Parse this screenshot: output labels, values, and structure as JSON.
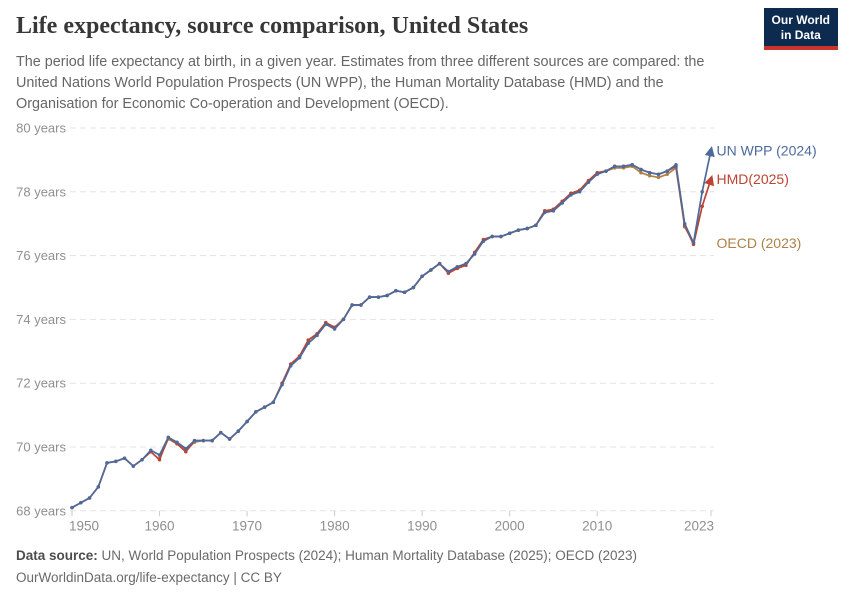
{
  "header": {
    "title": "Life expectancy, source comparison, United States",
    "subtitle_lines": [
      "The period life expectancy at birth, in a given year. Estimates from three different sources are compared: the",
      "United Nations World Population Prospects (UN WPP), the Human Mortality Database (HMD) and the",
      "Organisation for Economic Co-operation and Development (OECD)."
    ],
    "logo": {
      "line1": "Our World",
      "line2": "in Data",
      "bg_color": "#0C2B4E",
      "accent_color": "#CB342B"
    }
  },
  "footer": {
    "source_label": "Data source:",
    "source_text": " UN, World Population Prospects (2024); Human Mortality Database (2025); OECD (2023)",
    "license_text": "OurWorldinData.org/life-expectancy | CC BY"
  },
  "chart_data": {
    "type": "line",
    "title": "Life expectancy, source comparison, United States",
    "xlabel": "",
    "ylabel": "",
    "ytick_suffix": " years",
    "xlim": [
      1950,
      2023
    ],
    "ylim": [
      68,
      80
    ],
    "yticks": [
      80,
      78,
      76,
      74,
      72,
      70,
      68
    ],
    "xticks": [
      1950,
      1960,
      1970,
      1980,
      1990,
      2000,
      2010,
      2023
    ],
    "grid": "horizontal-dashed",
    "legend_position": "right-of-line-ends",
    "x": [
      1950,
      1951,
      1952,
      1953,
      1954,
      1955,
      1956,
      1957,
      1958,
      1959,
      1960,
      1961,
      1962,
      1963,
      1964,
      1965,
      1966,
      1967,
      1968,
      1969,
      1970,
      1971,
      1972,
      1973,
      1974,
      1975,
      1976,
      1977,
      1978,
      1979,
      1980,
      1981,
      1982,
      1983,
      1984,
      1985,
      1986,
      1987,
      1988,
      1989,
      1990,
      1991,
      1992,
      1993,
      1994,
      1995,
      1996,
      1997,
      1998,
      1999,
      2000,
      2001,
      2002,
      2003,
      2004,
      2005,
      2006,
      2007,
      2008,
      2009,
      2010,
      2011,
      2012,
      2013,
      2014,
      2015,
      2016,
      2017,
      2018,
      2019,
      2020,
      2021,
      2022,
      2023
    ],
    "series": [
      {
        "name": "UN WPP (2024)",
        "color": "#4C6A9C",
        "arrow_end": true,
        "values": [
          68.1,
          68.25,
          68.4,
          68.75,
          69.5,
          69.55,
          69.65,
          69.4,
          69.6,
          69.9,
          69.75,
          70.3,
          70.15,
          69.95,
          70.2,
          70.2,
          70.2,
          70.45,
          70.25,
          70.5,
          70.8,
          71.1,
          71.25,
          71.4,
          71.95,
          72.55,
          72.8,
          73.25,
          73.5,
          73.85,
          73.7,
          74.0,
          74.45,
          74.45,
          74.7,
          74.7,
          74.75,
          74.9,
          74.85,
          75.0,
          75.35,
          75.55,
          75.75,
          75.5,
          75.65,
          75.75,
          76.05,
          76.45,
          76.6,
          76.6,
          76.7,
          76.8,
          76.85,
          76.95,
          77.35,
          77.4,
          77.65,
          77.9,
          78.0,
          78.3,
          78.55,
          78.65,
          78.8,
          78.8,
          78.85,
          78.7,
          78.6,
          78.55,
          78.65,
          78.85,
          77.0,
          76.4,
          78.0,
          79.3
        ]
      },
      {
        "name": "HMD(2025)",
        "color": "#BE4333",
        "arrow_end": true,
        "values": [
          68.1,
          68.25,
          68.4,
          68.75,
          69.5,
          69.55,
          69.65,
          69.4,
          69.6,
          69.85,
          69.6,
          70.3,
          70.1,
          69.85,
          70.2,
          70.2,
          70.2,
          70.45,
          70.25,
          70.5,
          70.8,
          71.1,
          71.25,
          71.4,
          72.0,
          72.6,
          72.85,
          73.35,
          73.55,
          73.9,
          73.75,
          74.0,
          74.45,
          74.45,
          74.7,
          74.7,
          74.75,
          74.9,
          74.85,
          75.0,
          75.35,
          75.55,
          75.75,
          75.45,
          75.6,
          75.7,
          76.1,
          76.5,
          76.6,
          76.6,
          76.7,
          76.8,
          76.85,
          76.95,
          77.4,
          77.45,
          77.7,
          77.95,
          78.05,
          78.35,
          78.6,
          78.65,
          78.8,
          78.8,
          78.85,
          78.7,
          78.6,
          78.55,
          78.65,
          78.8,
          76.95,
          76.35,
          77.55,
          78.4
        ]
      },
      {
        "name": "OECD (2023)",
        "color": "#AD8248",
        "arrow_end": false,
        "values": [
          null,
          null,
          null,
          null,
          null,
          null,
          null,
          null,
          null,
          null,
          69.65,
          70.25,
          70.1,
          69.9,
          70.15,
          70.2,
          70.2,
          70.45,
          70.25,
          70.5,
          70.8,
          71.1,
          71.25,
          71.4,
          72.0,
          72.6,
          72.85,
          73.35,
          73.55,
          73.9,
          73.75,
          74.0,
          74.45,
          74.45,
          74.7,
          74.7,
          74.75,
          74.9,
          74.85,
          75.0,
          75.35,
          75.55,
          75.75,
          75.45,
          75.6,
          75.7,
          76.1,
          76.5,
          76.6,
          76.6,
          76.7,
          76.8,
          76.85,
          76.95,
          77.4,
          77.45,
          77.7,
          77.95,
          78.05,
          78.35,
          78.6,
          78.65,
          78.75,
          78.75,
          78.8,
          78.6,
          78.5,
          78.45,
          78.55,
          78.75,
          76.9,
          76.4,
          null,
          null
        ]
      }
    ],
    "colors": {
      "grid": "#e3e3e3",
      "axis_text": "#8f8f8f",
      "tick_mark": "#cccccc"
    }
  }
}
